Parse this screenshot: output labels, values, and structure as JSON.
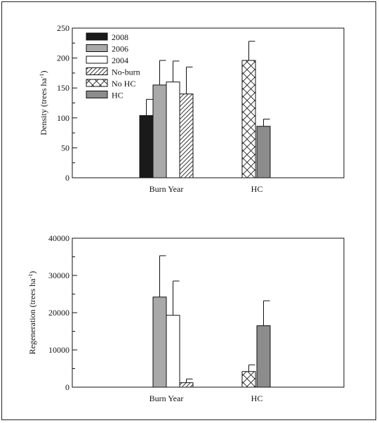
{
  "colors": {
    "2008": "#1a1a1a",
    "2006": "#a9a9a9",
    "2004": "#ffffff",
    "No-burn": "hatch-diagonal",
    "No HC": "hatch-cross",
    "HC": "#8c8c8c"
  },
  "chart_data": [
    {
      "type": "bar",
      "ylabel": "Density (trees ha",
      "ylabel_sup": "-1",
      "ylabel_end": ")",
      "ylim": [
        0,
        250
      ],
      "yticks": [
        0,
        50,
        100,
        150,
        200,
        250
      ],
      "categories": [
        "Burn Year",
        "HC"
      ],
      "legend": {
        "placement": "top-left",
        "entries": [
          "2008",
          "2006",
          "2004",
          "No-burn",
          "No HC",
          "HC"
        ]
      },
      "series": [
        {
          "name": "2008",
          "category": "Burn Year",
          "value": 104,
          "error": 27
        },
        {
          "name": "2006",
          "category": "Burn Year",
          "value": 155,
          "error": 41
        },
        {
          "name": "2004",
          "category": "Burn Year",
          "value": 160,
          "error": 35
        },
        {
          "name": "No-burn",
          "category": "Burn Year",
          "value": 140,
          "error": 45
        },
        {
          "name": "No HC",
          "category": "HC",
          "value": 196,
          "error": 32
        },
        {
          "name": "HC",
          "category": "HC",
          "value": 86,
          "error": 12
        }
      ]
    },
    {
      "type": "bar",
      "ylabel": "Regeneration (trees ha",
      "ylabel_sup": "-1",
      "ylabel_end": ")",
      "ylim": [
        0,
        40000
      ],
      "yticks": [
        0,
        10000,
        20000,
        30000,
        40000
      ],
      "categories": [
        "Burn Year",
        "HC"
      ],
      "series": [
        {
          "name": "2008",
          "category": "Burn Year",
          "value": 0,
          "error": 0
        },
        {
          "name": "2006",
          "category": "Burn Year",
          "value": 24200,
          "error": 11100
        },
        {
          "name": "2004",
          "category": "Burn Year",
          "value": 19300,
          "error": 9200
        },
        {
          "name": "No-burn",
          "category": "Burn Year",
          "value": 1200,
          "error": 1000
        },
        {
          "name": "No HC",
          "category": "HC",
          "value": 4200,
          "error": 1800
        },
        {
          "name": "HC",
          "category": "HC",
          "value": 16500,
          "error": 6700
        }
      ]
    }
  ]
}
